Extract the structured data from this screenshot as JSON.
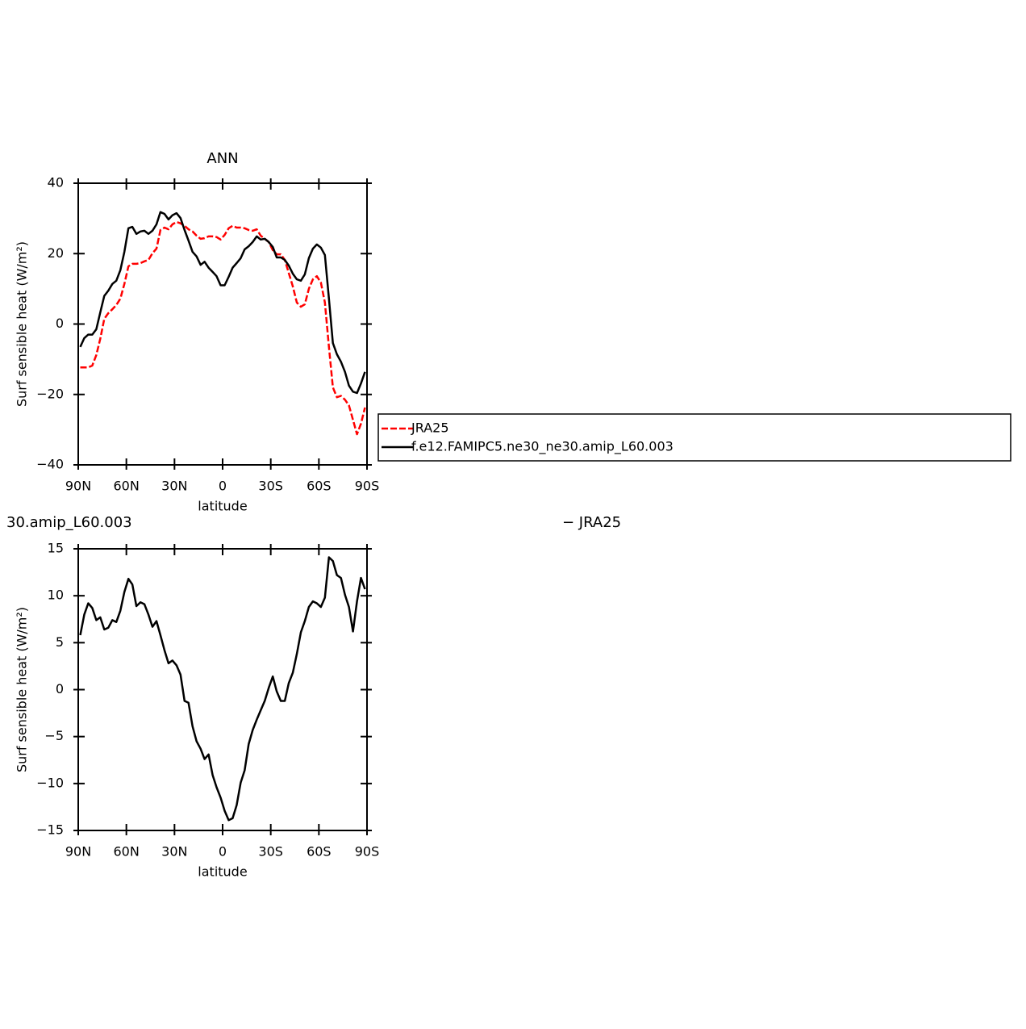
{
  "chart_data": [
    {
      "type": "line",
      "title": "ANN",
      "xlabel": "latitude",
      "ylabel": "Surf sensible heat (W/m²)",
      "x": [
        88.75,
        86.25,
        83.75,
        81.25,
        78.75,
        76.25,
        73.75,
        71.25,
        68.75,
        66.25,
        63.75,
        61.25,
        58.75,
        56.25,
        53.75,
        51.25,
        48.75,
        46.25,
        43.75,
        41.25,
        38.75,
        36.25,
        33.75,
        31.25,
        28.75,
        26.25,
        23.75,
        21.25,
        18.75,
        16.25,
        13.75,
        11.25,
        8.75,
        6.25,
        3.75,
        1.25,
        -1.25,
        -3.75,
        -6.25,
        -8.75,
        -11.25,
        -13.75,
        -16.25,
        -18.75,
        -21.25,
        -23.75,
        -26.25,
        -28.75,
        -31.25,
        -33.75,
        -36.25,
        -38.75,
        -41.25,
        -43.75,
        -46.25,
        -48.75,
        -51.25,
        -53.75,
        -56.25,
        -58.75,
        -61.25,
        -63.75,
        -66.25,
        -68.75,
        -71.25,
        -73.75,
        -76.25,
        -78.75,
        -81.25,
        -83.75,
        -86.25,
        -88.75
      ],
      "series": [
        {
          "name": "JRA25",
          "color": "#ff0000",
          "dashed": true,
          "values": [
            -12.3,
            -12.3,
            -12.3,
            -11.8,
            -8.8,
            -4.2,
            1.5,
            3.1,
            4.2,
            5.4,
            7.2,
            11.4,
            16.4,
            17.1,
            17.1,
            17.3,
            17.8,
            18.2,
            20.1,
            21.4,
            26.7,
            27.4,
            26.9,
            28.3,
            29,
            28.6,
            27.9,
            26.9,
            26.3,
            25.1,
            24.2,
            24.4,
            24.9,
            24.9,
            24.7,
            24,
            25.3,
            27.2,
            27.9,
            27.4,
            27.4,
            27.2,
            26.7,
            26.5,
            26.9,
            25.1,
            24.2,
            23.3,
            21,
            19.8,
            19.8,
            18.2,
            14.5,
            10.7,
            6.1,
            4.9,
            5.6,
            10,
            12.7,
            13.6,
            11.8,
            6.1,
            -6.5,
            -18,
            -20.8,
            -20.4,
            -21.5,
            -23.1,
            -27.2,
            -31.3,
            -28.3,
            -23.7
          ]
        },
        {
          "name": "f.e12.FAMIPC5.ne30_ne30.amip_L60.003",
          "color": "#000000",
          "dashed": false,
          "values": [
            -6.5,
            -4,
            -3,
            -3,
            -1.5,
            3.3,
            8,
            9.5,
            11.4,
            12.3,
            15.3,
            20.5,
            27.2,
            27.6,
            25.6,
            26.3,
            26.5,
            25.6,
            26.5,
            28.3,
            31.8,
            31.3,
            29.7,
            30.9,
            31.5,
            30.1,
            26.7,
            23.7,
            20.5,
            19.2,
            16.8,
            17.7,
            16,
            14.8,
            13.6,
            11,
            11,
            13.4,
            16,
            17.3,
            18.7,
            21.2,
            22.1,
            23.3,
            24.9,
            24,
            24.2,
            23.3,
            21.9,
            18.9,
            18.9,
            18.2,
            16.6,
            14.3,
            12.7,
            12.3,
            14.1,
            18.7,
            21.4,
            22.6,
            21.7,
            19.6,
            7.2,
            -5.4,
            -8.6,
            -10.7,
            -13.6,
            -17.5,
            -19.2,
            -19.6,
            -16.9,
            -13.6
          ]
        }
      ],
      "xlim": [
        90,
        -90
      ],
      "xticks": [
        {
          "value": 90,
          "label": "90N"
        },
        {
          "value": 60,
          "label": "60N"
        },
        {
          "value": 30,
          "label": "30N"
        },
        0,
        {
          "value": -30,
          "label": "30S"
        },
        {
          "value": -60,
          "label": "60S"
        },
        {
          "value": -90,
          "label": "90S"
        }
      ],
      "ylim": [
        -40,
        40
      ],
      "yticks": [
        {
          "value": -40,
          "label": "−40"
        },
        {
          "value": -20,
          "label": "−20"
        },
        0,
        20,
        40
      ]
    },
    {
      "type": "line",
      "title_fragments": [
        "30.amip_L60.003",
        "− JRA25"
      ],
      "xlabel": "latitude",
      "ylabel": "Surf sensible heat (W/m²)",
      "x": [
        88.75,
        86.25,
        83.75,
        81.25,
        78.75,
        76.25,
        73.75,
        71.25,
        68.75,
        66.25,
        63.75,
        61.25,
        58.75,
        56.25,
        53.75,
        51.25,
        48.75,
        46.25,
        43.75,
        41.25,
        38.75,
        36.25,
        33.75,
        31.25,
        28.75,
        26.25,
        23.75,
        21.25,
        18.75,
        16.25,
        13.75,
        11.25,
        8.75,
        6.25,
        3.75,
        1.25,
        -1.25,
        -3.75,
        -6.25,
        -8.75,
        -11.25,
        -13.75,
        -16.25,
        -18.75,
        -21.25,
        -23.75,
        -26.25,
        -28.75,
        -31.25,
        -33.75,
        -36.25,
        -38.75,
        -41.25,
        -43.75,
        -46.25,
        -48.75,
        -51.25,
        -53.75,
        -56.25,
        -58.75,
        -61.25,
        -63.75,
        -66.25,
        -68.75,
        -71.25,
        -73.75,
        -76.25,
        -78.75,
        -81.25,
        -83.75,
        -86.25,
        -88.75
      ],
      "series": [
        {
          "color": "#000000",
          "dashed": false,
          "values": [
            5.8,
            8,
            9.2,
            8.7,
            7.4,
            7.7,
            6.4,
            6.6,
            7.4,
            7.2,
            8.4,
            10.4,
            11.8,
            11.2,
            8.9,
            9.3,
            9.1,
            8,
            6.7,
            7.3,
            5.8,
            4.2,
            2.8,
            3.1,
            2.6,
            1.6,
            -1.2,
            -1.4,
            -3.9,
            -5.5,
            -6.3,
            -7.4,
            -6.9,
            -9.1,
            -10.4,
            -11.5,
            -12.9,
            -13.9,
            -13.7,
            -12.3,
            -9.9,
            -8.6,
            -5.8,
            -4.3,
            -3.2,
            -2.2,
            -1.2,
            0.2,
            1.4,
            -0.2,
            -1.2,
            -1.2,
            0.7,
            1.8,
            3.8,
            6.1,
            7.3,
            8.8,
            9.4,
            9.2,
            8.8,
            9.8,
            14.1,
            13.7,
            12.2,
            11.9,
            10.1,
            8.8,
            6.2,
            9.4,
            11.9,
            10.7
          ]
        }
      ],
      "xlim": [
        90,
        -90
      ],
      "xticks": [
        {
          "value": 90,
          "label": "90N"
        },
        {
          "value": 60,
          "label": "60N"
        },
        {
          "value": 30,
          "label": "30N"
        },
        0,
        {
          "value": -30,
          "label": "30S"
        },
        {
          "value": -60,
          "label": "60S"
        },
        {
          "value": -90,
          "label": "90S"
        }
      ],
      "ylim": [
        -15,
        15
      ],
      "yticks": [
        {
          "value": -15,
          "label": "−15"
        },
        {
          "value": -10,
          "label": "−10"
        },
        {
          "value": -5,
          "label": "−5"
        },
        0,
        5,
        10,
        15
      ]
    }
  ]
}
